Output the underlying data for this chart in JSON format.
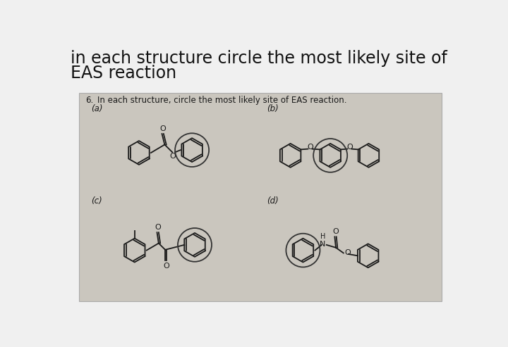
{
  "title_line1": "in each structure circle the most likely site of",
  "title_line2": "EAS reaction",
  "question_num": "6.",
  "question_text": "In each structure, circle the most likely site of EAS reaction.",
  "label_a": "(a)",
  "label_b": "(b)",
  "label_c": "(c)",
  "label_d": "(d)",
  "bg_color": "#cac6be",
  "outer_bg": "#f0f0f0",
  "line_color": "#1a1a1a",
  "title_fontsize": 17,
  "label_fontsize": 8.5,
  "question_fontsize": 8.5
}
